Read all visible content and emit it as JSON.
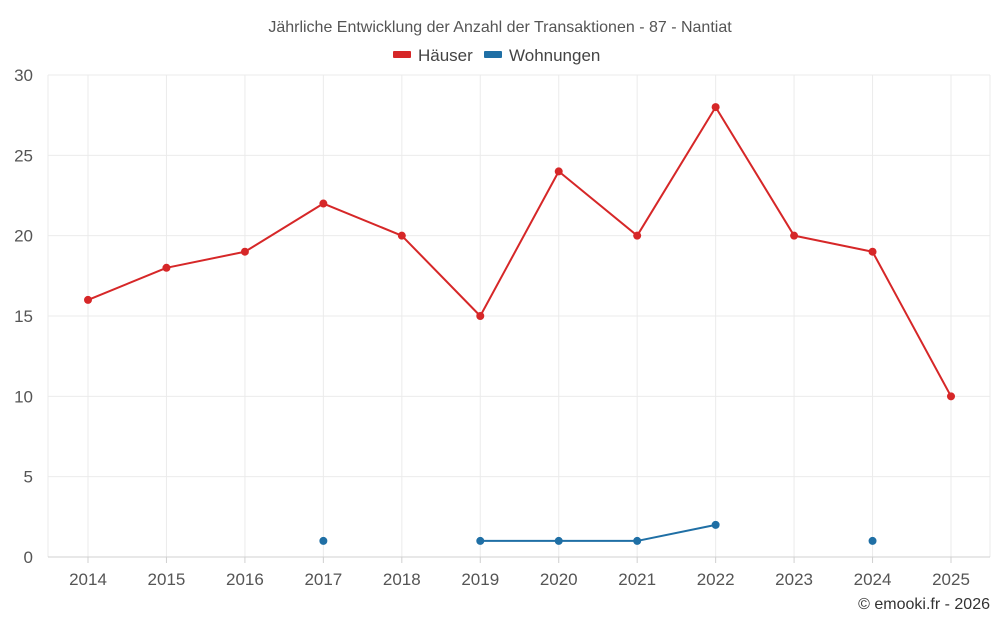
{
  "chart_data": {
    "type": "line",
    "title": "Jährliche Entwicklung der Anzahl der Transaktionen - 87 - Nantiat",
    "categories": [
      "2014",
      "2015",
      "2016",
      "2017",
      "2018",
      "2019",
      "2020",
      "2021",
      "2022",
      "2023",
      "2024",
      "2025"
    ],
    "ylim": [
      0,
      30
    ],
    "yticks": [
      0,
      5,
      10,
      15,
      20,
      25,
      30
    ],
    "grid": true,
    "legend_position": "top-center",
    "series": [
      {
        "name": "Häuser",
        "color": "#d62728",
        "values": [
          16,
          18,
          19,
          22,
          20,
          15,
          24,
          20,
          28,
          20,
          19,
          10
        ]
      },
      {
        "name": "Wohnungen",
        "color": "#1f6fa5",
        "values": [
          null,
          null,
          null,
          1,
          null,
          1,
          1,
          1,
          2,
          null,
          1,
          null
        ]
      }
    ]
  },
  "credit": "© emooki.fr - 2026"
}
